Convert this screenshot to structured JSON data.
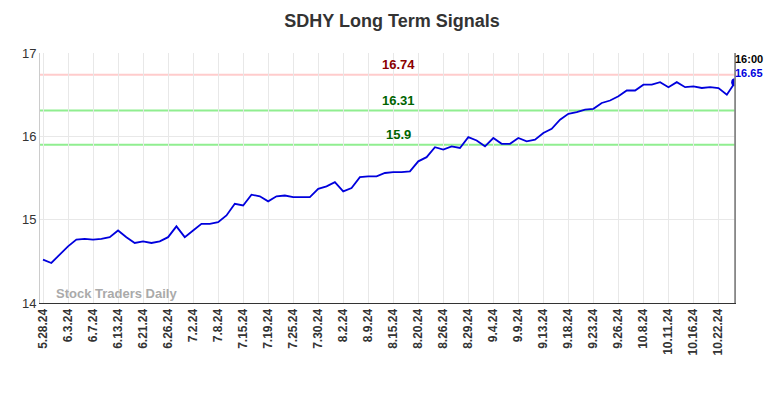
{
  "chart_data": {
    "type": "line",
    "title": "SDHY Long Term Signals",
    "watermark": "Stock Traders Daily",
    "annotations": [
      "16:00"
    ],
    "color": "#0000dd",
    "marker": "circle",
    "grid": true,
    "ylim": [
      14,
      17
    ],
    "yticks": [
      14,
      15,
      16,
      17
    ],
    "reference_lines": [
      {
        "value": 16.74,
        "color": "#ffcccc",
        "label_color": "#8b0000"
      },
      {
        "value": 16.31,
        "color": "#90ee90",
        "label_color": "#006400"
      },
      {
        "value": 15.9,
        "color": "#90ee90",
        "label_color": "#006400"
      }
    ],
    "categories": [
      "5.28.24",
      null,
      null,
      "6.3.24",
      null,
      null,
      "6.7.24",
      null,
      null,
      "6.13.24",
      null,
      null,
      "6.21.24",
      null,
      null,
      "6.26.24",
      null,
      null,
      "7.2.24",
      null,
      null,
      "7.8.24",
      null,
      null,
      "7.15.24",
      null,
      null,
      "7.19.24",
      null,
      null,
      "7.25.24",
      null,
      null,
      "7.30.24",
      null,
      null,
      "8.2.24",
      null,
      null,
      "8.9.24",
      null,
      null,
      "8.15.24",
      null,
      null,
      "8.20.24",
      null,
      null,
      "8.26.24",
      null,
      null,
      "8.29.24",
      null,
      null,
      "9.4.24",
      null,
      null,
      "9.9.24",
      null,
      null,
      "9.13.24",
      null,
      null,
      "9.18.24",
      null,
      null,
      "9.23.24",
      null,
      null,
      "9.26.24",
      null,
      null,
      "10.8.24",
      null,
      null,
      "10.11.24",
      null,
      null,
      "10.16.24",
      null,
      null,
      "10.22.24",
      null,
      null
    ],
    "values": [
      14.52,
      14.48,
      14.58,
      14.68,
      14.76,
      14.77,
      14.76,
      14.77,
      14.79,
      14.87,
      14.79,
      14.72,
      14.74,
      14.72,
      14.74,
      14.79,
      14.92,
      14.79,
      14.87,
      14.95,
      14.95,
      14.97,
      15.05,
      15.19,
      15.17,
      15.3,
      15.28,
      15.22,
      15.28,
      15.29,
      15.27,
      15.27,
      15.27,
      15.37,
      15.4,
      15.45,
      15.34,
      15.38,
      15.51,
      15.52,
      15.52,
      15.56,
      15.57,
      15.57,
      15.58,
      15.7,
      15.75,
      15.87,
      15.84,
      15.88,
      15.86,
      15.99,
      15.95,
      15.88,
      15.98,
      15.91,
      15.91,
      15.98,
      15.94,
      15.96,
      16.04,
      16.09,
      16.2,
      16.27,
      16.29,
      16.32,
      16.33,
      16.4,
      16.43,
      16.48,
      16.55,
      16.55,
      16.62,
      16.62,
      16.65,
      16.59,
      16.65,
      16.59,
      16.6,
      16.58,
      16.59,
      16.58,
      16.5,
      16.65
    ]
  }
}
